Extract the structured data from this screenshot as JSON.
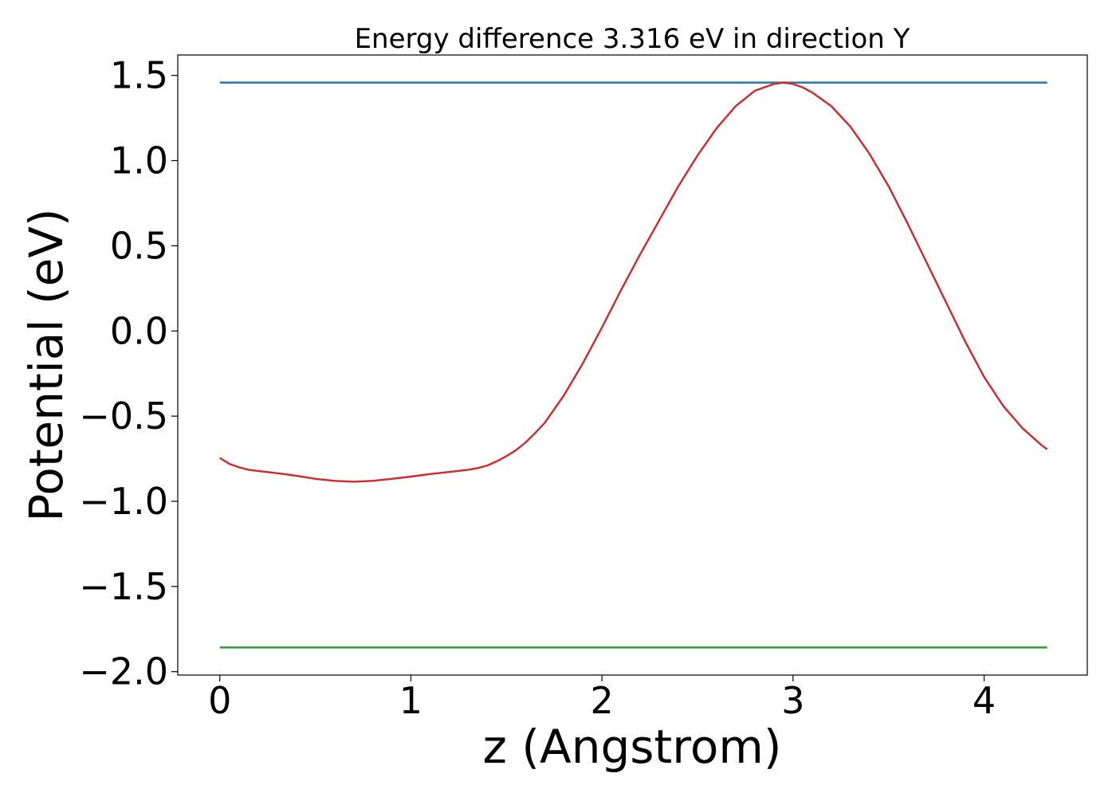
{
  "chart_data": {
    "type": "line",
    "title": "Energy difference 3.316 eV in direction Y",
    "xlabel": "z (Angstrom)",
    "ylabel": "Potential (eV)",
    "xlim": [
      -0.22,
      4.54
    ],
    "ylim": [
      -2.02,
      1.62
    ],
    "x_ticks": [
      0,
      1,
      2,
      3,
      4
    ],
    "x_tick_labels": [
      "0",
      "1",
      "2",
      "3",
      "4"
    ],
    "y_ticks": [
      1.5,
      1.0,
      0.5,
      0.0,
      -0.5,
      -1.0,
      -1.5,
      -2.0
    ],
    "y_tick_labels": [
      "1.5",
      "1.0",
      "0.5",
      "0.0",
      "−0.5",
      "−1.0",
      "−1.5",
      "−2.0"
    ],
    "grid": false,
    "series": [
      {
        "color": "#1f77b4",
        "x": [
          0,
          4.33
        ],
        "y": [
          1.458,
          1.458
        ]
      },
      {
        "color": "#2ca02c",
        "x": [
          0,
          4.33
        ],
        "y": [
          -1.858,
          -1.858
        ]
      },
      {
        "color": "#d62728",
        "x": [
          0,
          0.05,
          0.1,
          0.15,
          0.2,
          0.3,
          0.4,
          0.5,
          0.6,
          0.7,
          0.8,
          0.9,
          1.0,
          1.1,
          1.2,
          1.3,
          1.35,
          1.4,
          1.45,
          1.5,
          1.55,
          1.6,
          1.65,
          1.7,
          1.8,
          1.9,
          2.0,
          2.1,
          2.2,
          2.3,
          2.4,
          2.5,
          2.6,
          2.7,
          2.8,
          2.9,
          2.95,
          3.0,
          3.05,
          3.1,
          3.2,
          3.3,
          3.4,
          3.5,
          3.6,
          3.7,
          3.8,
          3.9,
          4.0,
          4.1,
          4.2,
          4.3,
          4.33
        ],
        "y": [
          -0.745,
          -0.78,
          -0.8,
          -0.815,
          -0.822,
          -0.835,
          -0.85,
          -0.868,
          -0.88,
          -0.885,
          -0.88,
          -0.868,
          -0.855,
          -0.84,
          -0.828,
          -0.815,
          -0.805,
          -0.79,
          -0.765,
          -0.735,
          -0.7,
          -0.655,
          -0.6,
          -0.54,
          -0.38,
          -0.19,
          0.02,
          0.24,
          0.45,
          0.65,
          0.85,
          1.03,
          1.19,
          1.32,
          1.41,
          1.45,
          1.458,
          1.45,
          1.43,
          1.4,
          1.32,
          1.2,
          1.04,
          0.85,
          0.63,
          0.4,
          0.17,
          -0.06,
          -0.27,
          -0.44,
          -0.57,
          -0.67,
          -0.695
        ]
      }
    ]
  }
}
